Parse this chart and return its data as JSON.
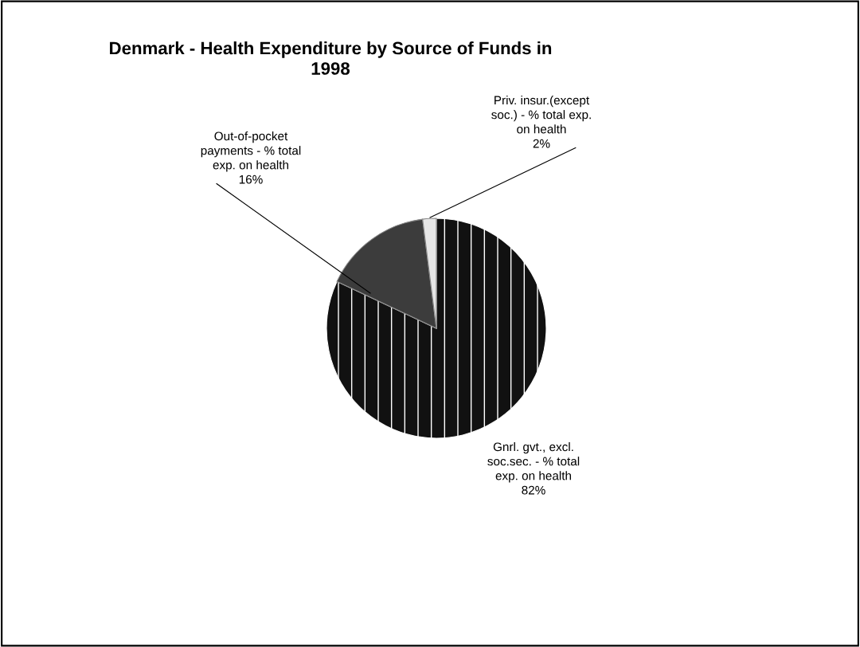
{
  "chart_data": {
    "type": "pie",
    "title": "Denmark - Health Expenditure by Source of Funds in 1998",
    "categories": [
      "Gnrl. gvt., excl. soc.sec. - % total exp. on health",
      "Out-of-pocket payments - % total exp. on health",
      "Priv. insur.(except soc.) - % total exp. on health"
    ],
    "values": [
      82,
      16,
      2
    ],
    "colors": [
      "#111111",
      "#3c3c3c",
      "#e6e6e6"
    ],
    "value_labels": [
      "82%",
      "16%",
      "2%"
    ],
    "legend": false
  }
}
